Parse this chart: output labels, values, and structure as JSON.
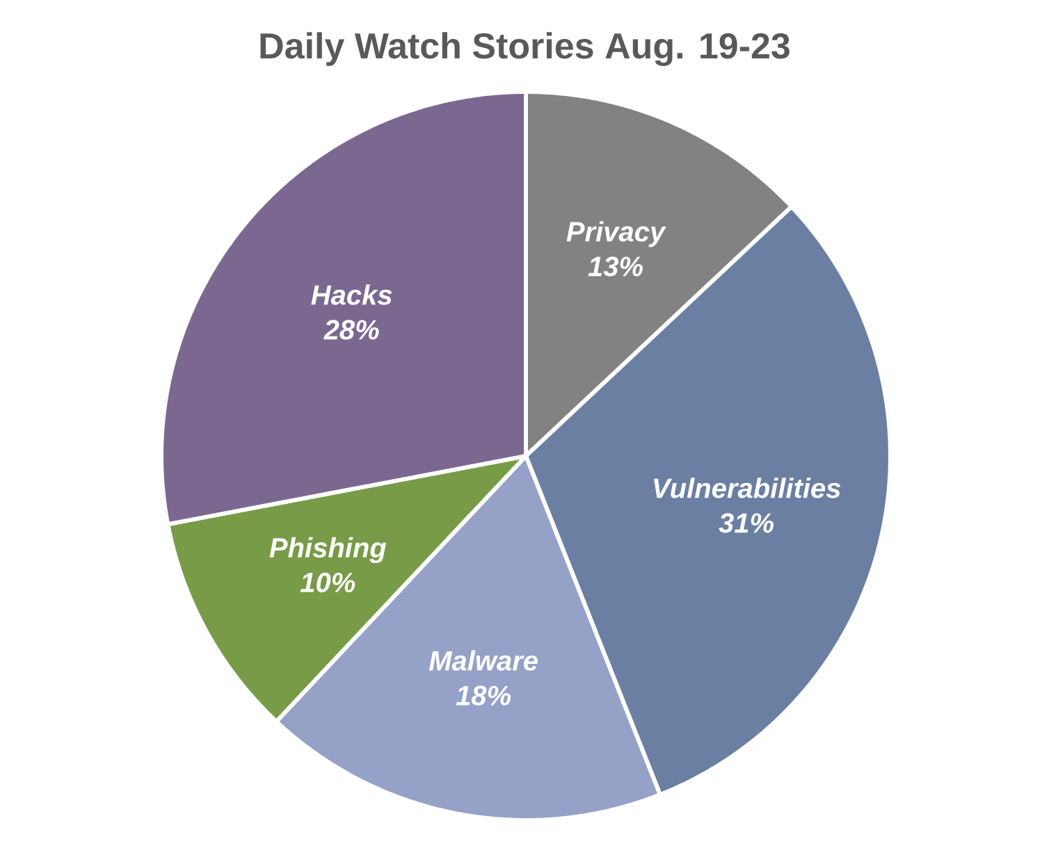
{
  "chart_data": {
    "type": "pie",
    "title": "Daily Watch Stories Aug. 19-23",
    "categories": [
      "Privacy",
      "Vulnerabilities",
      "Malware",
      "Phishing",
      "Hacks"
    ],
    "values": [
      13,
      31,
      18,
      10,
      28
    ],
    "value_labels": [
      "13%",
      "31%",
      "18%",
      "10%",
      "28%"
    ],
    "colors": [
      "#828282",
      "#6b7fa3",
      "#95a1c7",
      "#789b48",
      "#7b6890"
    ]
  }
}
